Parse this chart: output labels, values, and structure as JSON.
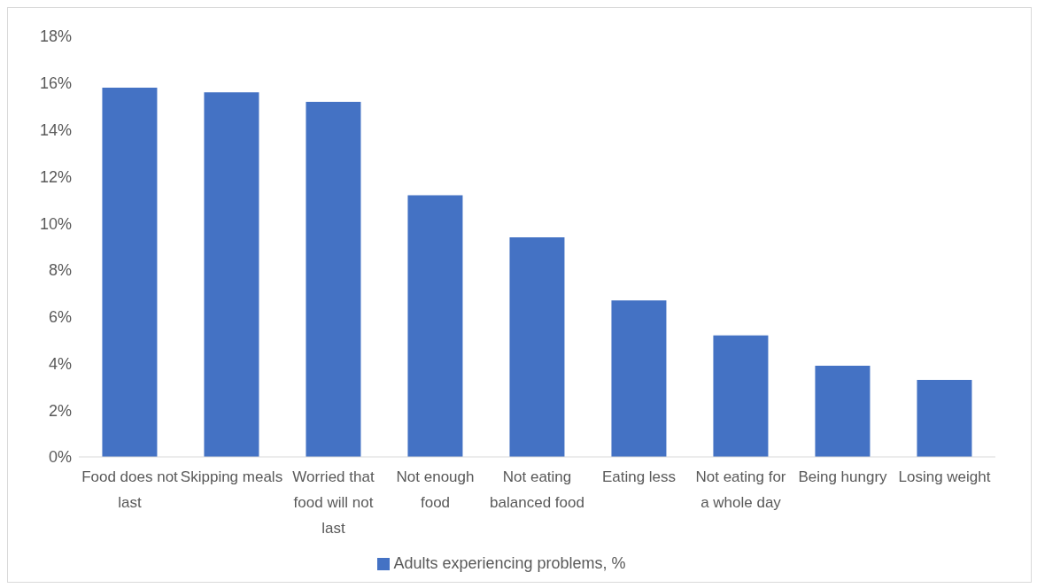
{
  "chart_data": {
    "type": "bar",
    "categories": [
      "Food does not last",
      "Skipping meals",
      "Worried that food will not last",
      "Not enough food",
      "Not eating balanced food",
      "Eating less",
      "Not eating for a whole day",
      "Being hungry",
      "Losing weight"
    ],
    "series": [
      {
        "name": "Adults experiencing problems, %",
        "color": "#4472c4",
        "values": [
          15.8,
          15.6,
          15.2,
          11.2,
          9.4,
          6.7,
          5.2,
          3.9,
          3.3
        ]
      }
    ],
    "ylim": [
      0,
      18
    ],
    "yticks": [
      {
        "value": 0,
        "label": "0%"
      },
      {
        "value": 2,
        "label": "2%"
      },
      {
        "value": 4,
        "label": "4%"
      },
      {
        "value": 6,
        "label": "6%"
      },
      {
        "value": 8,
        "label": "8%"
      },
      {
        "value": 10,
        "label": "10%"
      },
      {
        "value": 12,
        "label": "12%"
      },
      {
        "value": 14,
        "label": "14%"
      },
      {
        "value": 16,
        "label": "16%"
      },
      {
        "value": 18,
        "label": "18%"
      }
    ],
    "grid": false,
    "legend": "bottom"
  }
}
